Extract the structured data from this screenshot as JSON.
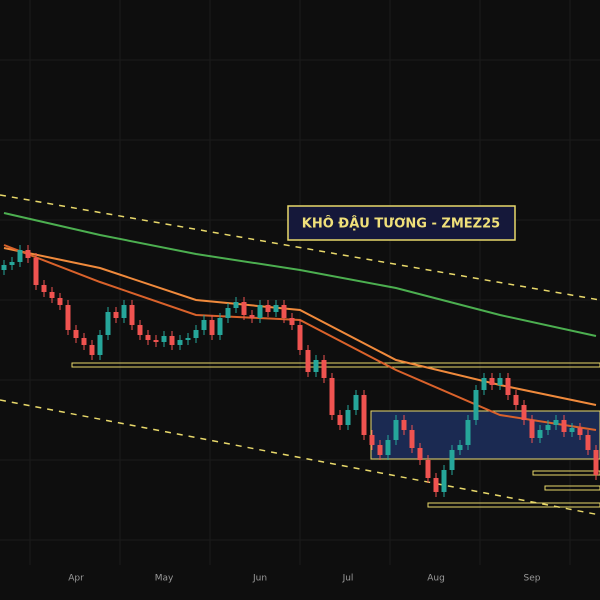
{
  "chart_data": {
    "type": "candlestick",
    "title": "KHÔ ĐẬU TƯƠNG - ZMEZ25",
    "xlim": [
      -0.5,
      74.5
    ],
    "ylim": [
      0,
      600
    ],
    "xticks": [
      {
        "value": 9,
        "label": "Apr"
      },
      {
        "value": 20,
        "label": "May"
      },
      {
        "value": 32,
        "label": "Jun"
      },
      {
        "value": 43,
        "label": "Jul"
      },
      {
        "value": 54,
        "label": "Aug"
      },
      {
        "value": 66,
        "label": "Sep"
      }
    ],
    "up_color": "#26a69a",
    "down_color": "#ef5350",
    "open": [
      330,
      335,
      338,
      350,
      342,
      315,
      308,
      302,
      295,
      270,
      262,
      255,
      245,
      265,
      288,
      282,
      295,
      275,
      265,
      260,
      258,
      264,
      255,
      260,
      262,
      270,
      280,
      265,
      282,
      292,
      298,
      285,
      282,
      295,
      288,
      295,
      282,
      275,
      250,
      228,
      240,
      222,
      185,
      175,
      190,
      205,
      165,
      155,
      145,
      160,
      180,
      170,
      152,
      140,
      122,
      108,
      130,
      150,
      155,
      180,
      210,
      222,
      215,
      222,
      205,
      195,
      180,
      162,
      170,
      175,
      180,
      168,
      172,
      165,
      150
    ],
    "high": [
      340,
      343,
      355,
      355,
      347,
      320,
      313,
      307,
      300,
      275,
      267,
      260,
      270,
      293,
      293,
      300,
      300,
      280,
      270,
      265,
      269,
      269,
      265,
      267,
      275,
      285,
      285,
      287,
      297,
      303,
      303,
      290,
      300,
      300,
      300,
      300,
      287,
      280,
      255,
      245,
      245,
      227,
      190,
      195,
      210,
      210,
      170,
      160,
      165,
      185,
      185,
      175,
      157,
      145,
      127,
      135,
      155,
      160,
      185,
      215,
      227,
      227,
      227,
      227,
      210,
      200,
      185,
      175,
      180,
      185,
      185,
      177,
      177,
      170,
      155
    ],
    "low": [
      325,
      330,
      333,
      337,
      310,
      303,
      297,
      290,
      265,
      257,
      250,
      240,
      240,
      260,
      277,
      277,
      270,
      260,
      255,
      253,
      253,
      250,
      250,
      255,
      257,
      265,
      260,
      260,
      277,
      287,
      280,
      277,
      277,
      283,
      283,
      277,
      270,
      245,
      223,
      223,
      217,
      180,
      170,
      170,
      185,
      160,
      150,
      140,
      140,
      155,
      165,
      147,
      135,
      117,
      103,
      103,
      125,
      145,
      150,
      175,
      205,
      210,
      210,
      200,
      190,
      175,
      157,
      157,
      165,
      170,
      163,
      163,
      160,
      145,
      120
    ],
    "close": [
      335,
      338,
      350,
      342,
      315,
      308,
      302,
      295,
      270,
      262,
      255,
      245,
      265,
      288,
      282,
      295,
      275,
      265,
      260,
      258,
      264,
      255,
      260,
      262,
      270,
      280,
      265,
      282,
      292,
      298,
      285,
      282,
      295,
      288,
      295,
      282,
      275,
      250,
      228,
      240,
      222,
      185,
      175,
      190,
      205,
      165,
      155,
      145,
      160,
      180,
      170,
      152,
      140,
      122,
      108,
      130,
      150,
      155,
      180,
      210,
      222,
      215,
      222,
      205,
      195,
      180,
      162,
      170,
      175,
      180,
      168,
      172,
      165,
      150,
      125
    ],
    "lines": [
      {
        "color": "#4caf50",
        "x": [
          0,
          12,
          24,
          37,
          49,
          62,
          74
        ],
        "values": [
          387,
          365,
          346,
          330,
          312,
          285,
          264
        ]
      },
      {
        "color": "#f08a3c",
        "x": [
          0,
          12,
          24,
          37,
          49,
          62,
          74
        ],
        "values": [
          352,
          332,
          300,
          290,
          240,
          215,
          195
        ]
      },
      {
        "color": "#d9622b",
        "x": [
          0,
          12,
          24,
          37,
          49,
          62,
          74
        ],
        "values": [
          355,
          318,
          285,
          280,
          230,
          185,
          170
        ]
      }
    ]
  }
}
